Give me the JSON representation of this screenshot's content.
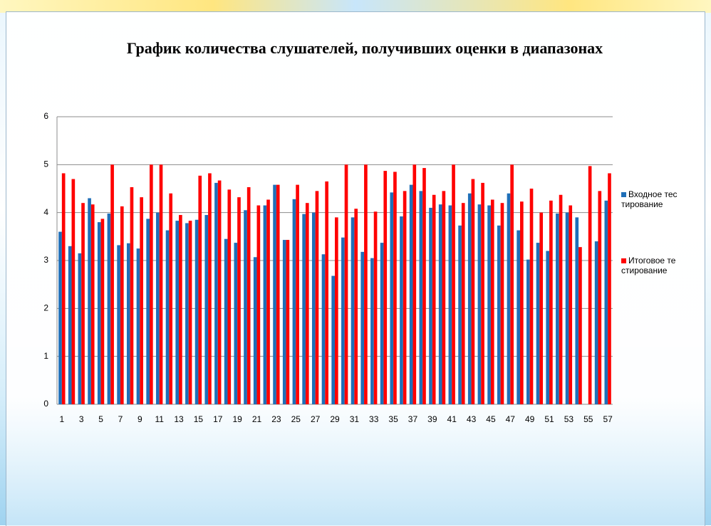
{
  "chart_data": {
    "type": "bar",
    "title": "График количества слушателей, получивших оценки в диапазонах",
    "categories": [
      "1",
      null,
      "3",
      null,
      "5",
      null,
      "7",
      null,
      "9",
      null,
      "11",
      null,
      "13",
      null,
      "15",
      null,
      "17",
      null,
      "19",
      null,
      "21",
      null,
      "23",
      null,
      "25",
      null,
      "27",
      null,
      "29",
      null,
      "31",
      null,
      "33",
      null,
      "35",
      null,
      "37",
      null,
      "39",
      null,
      "41",
      null,
      "43",
      null,
      "45",
      null,
      "47",
      null,
      "49",
      null,
      "51",
      null,
      "53",
      null,
      "55",
      null,
      "57"
    ],
    "series": [
      {
        "name": "Входное тестирование",
        "color": "#1f6fb8",
        "values": [
          3.6,
          3.3,
          3.15,
          4.3,
          3.8,
          3.98,
          3.32,
          3.36,
          3.25,
          3.87,
          4.0,
          3.63,
          3.83,
          3.78,
          3.85,
          3.95,
          4.62,
          3.45,
          3.37,
          4.05,
          3.07,
          4.15,
          4.58,
          3.43,
          4.28,
          3.97,
          4.0,
          3.13,
          2.68,
          3.48,
          3.9,
          3.18,
          3.05,
          3.37,
          4.42,
          3.92,
          4.58,
          4.45,
          4.1,
          4.17,
          4.15,
          3.73,
          4.4,
          4.17,
          4.15,
          3.73,
          4.4,
          3.63,
          3.02,
          3.37,
          3.2,
          3.98,
          4.0,
          3.9,
          null,
          3.4,
          4.25
        ]
      },
      {
        "name": "Итоговое тестирование",
        "color": "#ff0000",
        "values": [
          4.82,
          4.7,
          4.2,
          4.17,
          3.87,
          5.0,
          4.13,
          4.53,
          4.32,
          5.0,
          5.0,
          4.4,
          3.95,
          3.83,
          4.77,
          4.82,
          4.67,
          4.48,
          4.32,
          4.53,
          4.15,
          4.27,
          4.58,
          3.43,
          4.58,
          4.2,
          4.45,
          4.65,
          3.9,
          5.0,
          4.08,
          5.0,
          4.02,
          4.87,
          4.85,
          4.45,
          5.0,
          4.93,
          4.37,
          4.45,
          5.0,
          4.2,
          4.7,
          4.62,
          4.27,
          4.2,
          5.0,
          4.23,
          4.5,
          4.0,
          4.25,
          4.37,
          4.15,
          3.28,
          4.97,
          4.45,
          4.82
        ]
      }
    ],
    "ylim": [
      0,
      6
    ],
    "yticks": [
      0,
      1,
      2,
      3,
      4,
      5,
      6
    ],
    "grid": true,
    "legend": "right"
  }
}
